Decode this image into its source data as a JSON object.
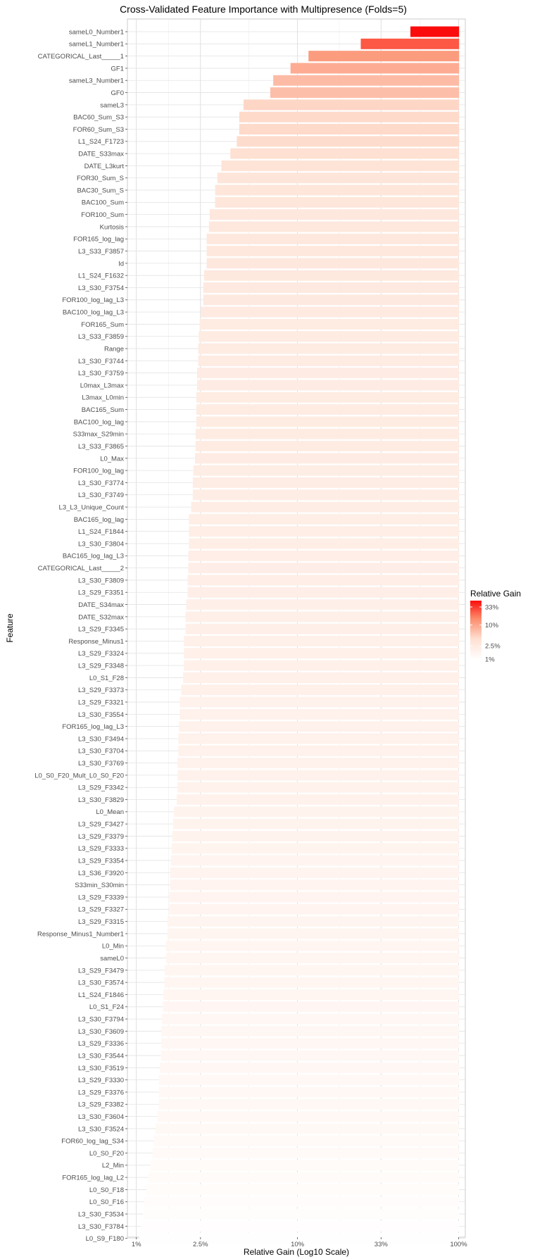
{
  "chart_data": {
    "type": "bar",
    "orientation": "horizontal",
    "title": "Cross-Validated Feature Importance with Multipresence (Folds=5)",
    "xlabel": "Relative Gain (Log10 Scale)",
    "ylabel": "Feature",
    "x_scale": "log10",
    "xlim": [
      0.88,
      110
    ],
    "x_ticks": [
      1,
      2.5,
      10,
      33,
      100
    ],
    "x_tick_labels": [
      "1%",
      "2.5%",
      "10%",
      "33%",
      "100%"
    ],
    "grid": true,
    "legend": {
      "title": "Relative Gain",
      "position": "right",
      "ticks": [
        1,
        2.5,
        10,
        33
      ],
      "labels": [
        "1%",
        "2.5%",
        "10%",
        "33%"
      ],
      "colors": [
        "#ffffff",
        "#fb0c0c"
      ]
    },
    "categories": [
      "sameL0_Number1",
      "sameL1_Number1",
      "CATEGORICAL_Last_____1",
      "GF1",
      "sameL3_Number1",
      "GF0",
      "sameL3",
      "BAC60_Sum_S3",
      "FOR60_Sum_S3",
      "L1_S24_F1723",
      "DATE_S33max",
      "DATE_L3kurt",
      "FOR30_Sum_S",
      "BAC30_Sum_S",
      "BAC100_Sum",
      "FOR100_Sum",
      "Kurtosis",
      "FOR165_log_lag",
      "L3_S33_F3857",
      "Id",
      "L1_S24_F1632",
      "L3_S30_F3754",
      "FOR100_log_lag_L3",
      "BAC100_log_lag_L3",
      "FOR165_Sum",
      "L3_S33_F3859",
      "Range",
      "L3_S30_F3744",
      "L3_S30_F3759",
      "L0max_L3max",
      "L3max_L0min",
      "BAC165_Sum",
      "BAC100_log_lag",
      "S33max_S29min",
      "L3_S33_F3865",
      "L0_Max",
      "FOR100_log_lag",
      "L3_S30_F3774",
      "L3_S30_F3749",
      "L3_L3_Unique_Count",
      "BAC165_log_lag",
      "L1_S24_F1844",
      "L3_S30_F3804",
      "BAC165_log_lag_L3",
      "CATEGORICAL_Last_____2",
      "L3_S30_F3809",
      "L3_S29_F3351",
      "DATE_S34max",
      "DATE_S32max",
      "L3_S29_F3345",
      "Response_Minus1",
      "L3_S29_F3324",
      "L3_S29_F3348",
      "L0_S1_F28",
      "L3_S29_F3373",
      "L3_S29_F3321",
      "L3_S30_F3554",
      "FOR165_log_lag_L3",
      "L3_S30_F3494",
      "L3_S30_F3704",
      "L3_S30_F3769",
      "L0_S0_F20_Mult_L0_S0_F20",
      "L3_S29_F3342",
      "L3_S30_F3829",
      "L0_Mean",
      "L3_S29_F3427",
      "L3_S29_F3379",
      "L3_S29_F3333",
      "L3_S29_F3354",
      "L3_S36_F3920",
      "S33min_S30min",
      "L3_S29_F3339",
      "L3_S29_F3327",
      "L3_S29_F3315",
      "Response_Minus1_Number1",
      "L0_Min",
      "sameL0",
      "L3_S29_F3479",
      "L3_S30_F3574",
      "L1_S24_F1846",
      "L0_S1_F24",
      "L3_S30_F3794",
      "L3_S30_F3609",
      "L3_S29_F3336",
      "L3_S30_F3544",
      "L3_S30_F3519",
      "L3_S29_F3330",
      "L3_S29_F3376",
      "L3_S29_F3382",
      "L3_S30_F3604",
      "L3_S30_F3524",
      "FOR60_log_lag_S34",
      "L0_S0_F20",
      "L2_Min",
      "FOR165_log_lag_L2",
      "L0_S0_F18",
      "L0_S0_F16",
      "L3_S30_F3534",
      "L3_S30_F3784",
      "L0_S9_F180"
    ],
    "values": [
      50.2,
      24.7,
      11.7,
      9.05,
      7.07,
      6.78,
      4.63,
      4.35,
      4.35,
      4.2,
      3.83,
      3.37,
      3.18,
      3.08,
      3.08,
      2.85,
      2.82,
      2.73,
      2.73,
      2.73,
      2.63,
      2.6,
      2.6,
      2.52,
      2.47,
      2.44,
      2.42,
      2.42,
      2.38,
      2.38,
      2.36,
      2.36,
      2.36,
      2.33,
      2.33,
      2.31,
      2.26,
      2.24,
      2.24,
      2.19,
      2.12,
      2.12,
      2.12,
      2.1,
      2.1,
      2.08,
      2.08,
      2.04,
      2.02,
      2.02,
      1.97,
      1.97,
      1.97,
      1.95,
      1.9,
      1.86,
      1.86,
      1.84,
      1.82,
      1.82,
      1.8,
      1.8,
      1.8,
      1.78,
      1.71,
      1.69,
      1.67,
      1.66,
      1.64,
      1.62,
      1.62,
      1.6,
      1.6,
      1.56,
      1.56,
      1.53,
      1.53,
      1.5,
      1.49,
      1.47,
      1.46,
      1.44,
      1.43,
      1.43,
      1.42,
      1.4,
      1.38,
      1.38,
      1.38,
      1.35,
      1.31,
      1.28,
      1.26,
      1.22,
      1.19,
      1.15,
      1.12,
      1.1,
      1.07,
      1.04
    ]
  }
}
